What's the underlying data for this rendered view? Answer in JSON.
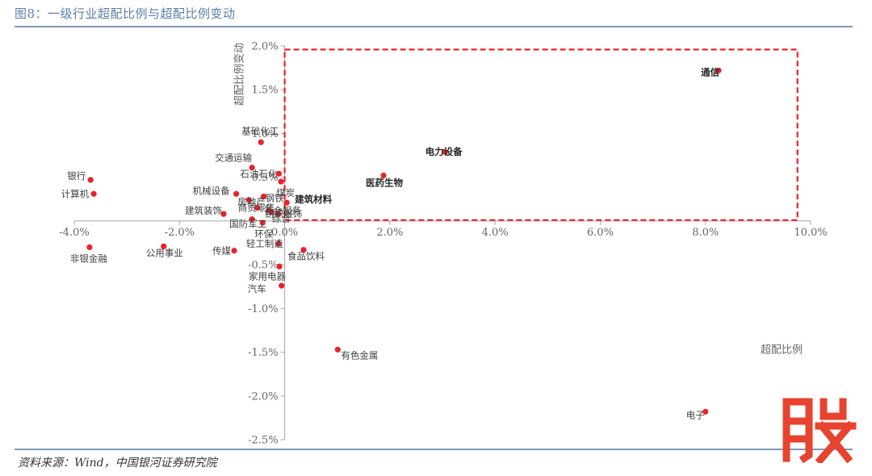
{
  "figure": {
    "title": "图8：一级行业超配比例与超配比例变动",
    "source": "资料来源：Wind，中国银河证券研究院",
    "logo_text": "股"
  },
  "colors": {
    "point": "#e8232b",
    "axis": "#a6a6a6",
    "box": "#e8232b",
    "rule": "#7f98b8",
    "logo": "#e8432e"
  },
  "chart_data": {
    "type": "scatter",
    "xlabel": "超配比例",
    "ylabel": "超配比例变动",
    "xlim": [
      -0.04,
      0.1
    ],
    "ylim": [
      -0.025,
      0.02
    ],
    "x_ticks": [
      {
        "value": -0.04,
        "label": "-4.0%"
      },
      {
        "value": -0.02,
        "label": "-2.0%"
      },
      {
        "value": 0.0,
        "label": "0.0%"
      },
      {
        "value": 0.02,
        "label": "2.0%"
      },
      {
        "value": 0.04,
        "label": "4.0%"
      },
      {
        "value": 0.06,
        "label": "6.0%"
      },
      {
        "value": 0.08,
        "label": "8.0%"
      },
      {
        "value": 0.1,
        "label": "10.0%"
      }
    ],
    "y_ticks": [
      {
        "value": 0.02,
        "label": "2.0%"
      },
      {
        "value": 0.015,
        "label": "1.5%"
      },
      {
        "value": 0.01,
        "label": "1.0%"
      },
      {
        "value": 0.005,
        "label": "0.5%"
      },
      {
        "value": -0.005,
        "label": "-0.5%"
      },
      {
        "value": -0.01,
        "label": "-1.0%"
      },
      {
        "value": -0.015,
        "label": "-1.5%"
      },
      {
        "value": -0.02,
        "label": "-2.0%"
      },
      {
        "value": -0.025,
        "label": "-2.5%"
      }
    ],
    "highlight_box": {
      "x": [
        0.0,
        0.0975
      ],
      "y": [
        0.0001,
        0.0196
      ]
    },
    "points": [
      {
        "name": "通信",
        "x": 0.0825,
        "y": 0.0172,
        "bold": true
      },
      {
        "name": "电力设备",
        "x": 0.0304,
        "y": 0.0079,
        "bold": true
      },
      {
        "name": "医药生物",
        "x": 0.0188,
        "y": 0.0052,
        "bold": true
      },
      {
        "name": "建筑材料",
        "x": 0.0004,
        "y": 0.0021,
        "bold": true
      },
      {
        "name": "基础化工",
        "x": -0.0045,
        "y": 0.009
      },
      {
        "name": "石油石化",
        "x": -0.0011,
        "y": 0.0054
      },
      {
        "name": "交通运输",
        "x": -0.0062,
        "y": 0.0061
      },
      {
        "name": "煤炭",
        "x": -0.0007,
        "y": 0.0045
      },
      {
        "name": "机械设备",
        "x": -0.0092,
        "y": 0.0031
      },
      {
        "name": "钢铁",
        "x": -0.004,
        "y": 0.0028
      },
      {
        "name": "房地产",
        "x": -0.0068,
        "y": 0.0024
      },
      {
        "name": "商贸零售",
        "x": -0.0052,
        "y": 0.0015
      },
      {
        "name": "社会服务",
        "x": -0.003,
        "y": 0.0012
      },
      {
        "name": "纺织服饰",
        "x": -0.0025,
        "y": 0.001
      },
      {
        "name": "综合",
        "x": -0.0012,
        "y": 0.0008
      },
      {
        "name": "建筑装饰",
        "x": -0.0116,
        "y": 0.0008
      },
      {
        "name": "国防军工",
        "x": -0.0062,
        "y": 0.0002
      },
      {
        "name": "环保",
        "x": -0.0042,
        "y": -0.0002
      },
      {
        "name": "银行",
        "x": -0.0369,
        "y": 0.0047
      },
      {
        "name": "计算机",
        "x": -0.0363,
        "y": 0.0031
      },
      {
        "name": "非银金融",
        "x": -0.0371,
        "y": -0.003
      },
      {
        "name": "公用事业",
        "x": -0.023,
        "y": -0.0029
      },
      {
        "name": "传媒",
        "x": -0.0096,
        "y": -0.0034
      },
      {
        "name": "轻工制造",
        "x": -0.0012,
        "y": -0.0026
      },
      {
        "name": "食品饮料",
        "x": 0.0036,
        "y": -0.0033
      },
      {
        "name": "家用电器",
        "x": -0.001,
        "y": -0.0052
      },
      {
        "name": "汽车",
        "x": -0.0006,
        "y": -0.0074
      },
      {
        "name": "有色金属",
        "x": 0.0101,
        "y": -0.0147
      },
      {
        "name": "电子",
        "x": 0.08,
        "y": -0.0218
      }
    ]
  }
}
